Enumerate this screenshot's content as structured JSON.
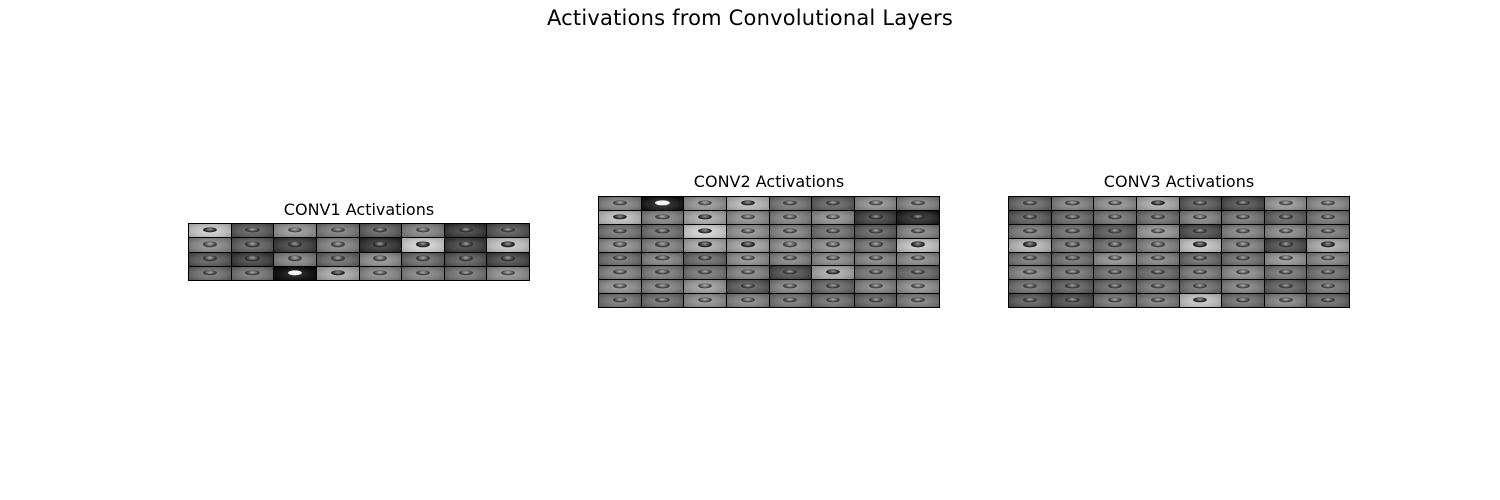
{
  "figure": {
    "title": "Activations from Convolutional Layers"
  },
  "panels": [
    {
      "title": "CONV1 Activations",
      "rows": 4,
      "cols": 8,
      "cells": [
        0.82,
        0.4,
        0.62,
        0.52,
        0.42,
        0.55,
        0.28,
        0.38,
        0.58,
        0.42,
        0.3,
        0.55,
        0.25,
        0.85,
        0.3,
        0.8,
        0.4,
        0.3,
        0.55,
        0.45,
        0.6,
        0.45,
        0.4,
        0.33,
        0.48,
        0.5,
        0.1,
        0.7,
        0.58,
        0.55,
        0.5,
        0.6
      ]
    },
    {
      "title": "CONV2 Activations",
      "rows": 8,
      "cols": 8,
      "cells": [
        0.55,
        0.15,
        0.62,
        0.75,
        0.5,
        0.42,
        0.6,
        0.55,
        0.78,
        0.55,
        0.7,
        0.6,
        0.55,
        0.6,
        0.3,
        0.2,
        0.5,
        0.48,
        0.85,
        0.6,
        0.55,
        0.48,
        0.42,
        0.55,
        0.6,
        0.55,
        0.7,
        0.68,
        0.6,
        0.6,
        0.5,
        0.8,
        0.48,
        0.55,
        0.45,
        0.6,
        0.55,
        0.58,
        0.55,
        0.58,
        0.55,
        0.52,
        0.5,
        0.55,
        0.35,
        0.7,
        0.5,
        0.45,
        0.6,
        0.55,
        0.65,
        0.4,
        0.55,
        0.45,
        0.55,
        0.6,
        0.5,
        0.48,
        0.6,
        0.55,
        0.5,
        0.48,
        0.45,
        0.52
      ]
    },
    {
      "title": "CONV3 Activations",
      "rows": 8,
      "cols": 8,
      "cells": [
        0.45,
        0.55,
        0.6,
        0.7,
        0.4,
        0.35,
        0.62,
        0.58,
        0.4,
        0.45,
        0.5,
        0.48,
        0.55,
        0.5,
        0.42,
        0.5,
        0.52,
        0.48,
        0.4,
        0.62,
        0.35,
        0.55,
        0.58,
        0.52,
        0.75,
        0.52,
        0.48,
        0.55,
        0.8,
        0.55,
        0.35,
        0.7,
        0.5,
        0.48,
        0.6,
        0.55,
        0.45,
        0.48,
        0.62,
        0.55,
        0.55,
        0.5,
        0.48,
        0.45,
        0.52,
        0.58,
        0.5,
        0.48,
        0.48,
        0.42,
        0.45,
        0.5,
        0.48,
        0.55,
        0.42,
        0.5,
        0.4,
        0.35,
        0.5,
        0.52,
        0.8,
        0.48,
        0.55,
        0.45
      ]
    }
  ]
}
